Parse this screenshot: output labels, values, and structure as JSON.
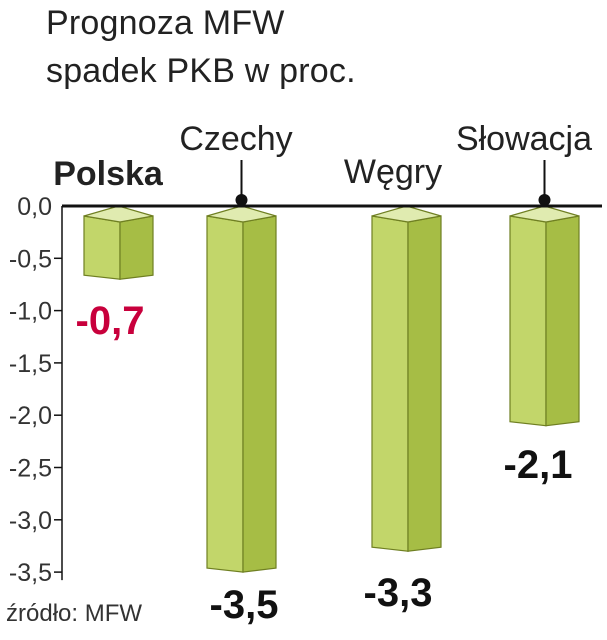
{
  "title_lines": [
    "Prognoza MFW",
    "spadek PKB w proc."
  ],
  "source": "źródło: MFW",
  "chart_data": {
    "type": "bar",
    "style": "3d-vertical-bars-hanging-from-zero",
    "title": "Prognoza MFW spadek PKB w proc.",
    "categories": [
      "Polska",
      "Czechy",
      "Węgry",
      "Słowacja"
    ],
    "values": [
      -0.7,
      -3.5,
      -3.3,
      -2.1
    ],
    "value_labels": [
      "-0,7",
      "-3,5",
      "-3,3",
      "-2,1"
    ],
    "highlight_category": "Polska",
    "ylim": [
      -3.5,
      0
    ],
    "yticks": [
      0,
      -0.5,
      -1.0,
      -1.5,
      -2.0,
      -2.5,
      -3.0,
      -3.5
    ],
    "ytick_labels": [
      "0,0",
      "-0,5",
      "-1,0",
      "-1,5",
      "-2,0",
      "-2,5",
      "-3,0",
      "-3,5"
    ],
    "grid": false,
    "colors": {
      "bar_front": "#c2d66a",
      "bar_side": "#a6bd45",
      "bar_top": "#e0ebb0",
      "bar_edge": "#6f7f22",
      "highlight_label": "#c8003c",
      "label": "#111111",
      "axis": "#111111"
    }
  }
}
